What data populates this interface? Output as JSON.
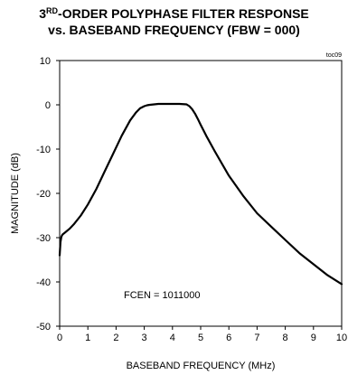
{
  "chart_data": {
    "type": "line",
    "title": {
      "line1_pre": "3",
      "line1_sup": "RD",
      "line1_post": "-ORDER POLYPHASE FILTER RESPONSE",
      "line2": "vs. BASEBAND FREQUENCY (FBW = 000)"
    },
    "tag": "toc09",
    "xlabel": "BASEBAND FREQUENCY (MHz)",
    "ylabel": "MAGNITUDE (dB)",
    "xlim": [
      0,
      10
    ],
    "ylim": [
      -50,
      10
    ],
    "xticks": [
      "0",
      "1",
      "2",
      "3",
      "4",
      "5",
      "6",
      "7",
      "8",
      "9",
      "10"
    ],
    "yticks": [
      "10",
      "0",
      "-10",
      "-20",
      "-30",
      "-40",
      "-50"
    ],
    "grid": false,
    "annotation": "FCEN = 1011000",
    "series": [
      {
        "x": [
          0.0,
          0.03,
          0.06,
          0.1,
          0.2,
          0.35,
          0.5,
          0.75,
          1.0,
          1.3,
          1.6,
          1.9,
          2.2,
          2.5,
          2.7,
          2.85,
          3.0,
          3.1,
          3.2,
          3.35,
          3.5,
          3.75,
          4.0,
          4.25,
          4.5,
          4.6,
          4.7,
          4.8,
          4.9,
          5.0,
          5.2,
          5.5,
          6.0,
          6.5,
          7.0,
          7.5,
          8.0,
          8.5,
          9.0,
          9.5,
          10.0
        ],
        "y": [
          -34.0,
          -31.0,
          -29.8,
          -29.3,
          -28.8,
          -28.0,
          -27.0,
          -25.0,
          -22.5,
          -19.0,
          -15.0,
          -11.0,
          -7.0,
          -3.5,
          -1.8,
          -0.8,
          -0.3,
          -0.1,
          0.0,
          0.1,
          0.2,
          0.2,
          0.2,
          0.2,
          0.1,
          -0.3,
          -1.0,
          -2.0,
          -3.2,
          -4.5,
          -7.0,
          -10.5,
          -16.0,
          -20.5,
          -24.5,
          -27.5,
          -30.5,
          -33.5,
          -36.0,
          -38.5,
          -40.5
        ],
        "color": "#000000"
      }
    ]
  }
}
